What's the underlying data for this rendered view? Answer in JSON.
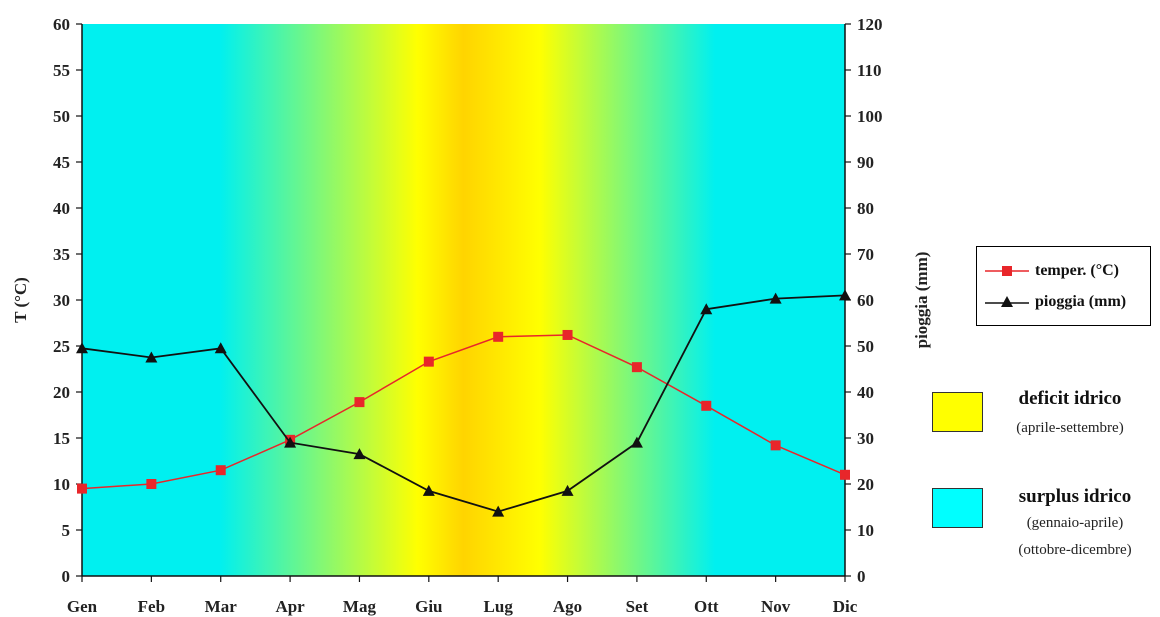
{
  "chart_data": {
    "type": "line",
    "categories": [
      "Gen",
      "Feb",
      "Mar",
      "Apr",
      "Mag",
      "Giu",
      "Lug",
      "Ago",
      "Set",
      "Ott",
      "Nov",
      "Dic"
    ],
    "y_left": {
      "label": "T (°C)",
      "ylim": [
        0,
        60
      ],
      "ticks": [
        "0",
        "5",
        "10",
        "15",
        "20",
        "25",
        "30",
        "35",
        "40",
        "45",
        "50",
        "55",
        "60"
      ]
    },
    "y_right": {
      "label": "pioggia (mm)",
      "ylim": [
        0,
        120
      ],
      "ticks": [
        "0",
        "10",
        "20",
        "30",
        "40",
        "50",
        "60",
        "70",
        "80",
        "90",
        "100",
        "110",
        "120"
      ]
    },
    "series": [
      {
        "name": "temper. (°C)",
        "axis": "left",
        "marker": "square",
        "color": "#e8262a",
        "values": [
          9.5,
          10.0,
          11.5,
          14.8,
          18.9,
          23.3,
          26.0,
          26.2,
          22.7,
          18.5,
          14.2,
          11.0
        ]
      },
      {
        "name": "pioggia (mm)",
        "axis": "right",
        "marker": "triangle",
        "color": "#111111",
        "values": [
          49.5,
          47.5,
          49.5,
          29.0,
          26.5,
          18.5,
          14.0,
          18.5,
          29.0,
          58.0,
          60.3,
          61.0
        ]
      }
    ],
    "background": {
      "surplus_color": "#00f0f0",
      "deficit_color": "#ffff00",
      "peak_color": "#ffd400"
    },
    "legend_position": "right",
    "grid": false
  },
  "zones": [
    {
      "title": "deficit idrico",
      "subtitle": [
        "(aprile-settembre)"
      ],
      "color": "#ffff00"
    },
    {
      "title": "surplus idrico",
      "subtitle": [
        "(gennaio-aprile)",
        "(ottobre-dicembre)"
      ],
      "color": "#00ffff"
    }
  ]
}
